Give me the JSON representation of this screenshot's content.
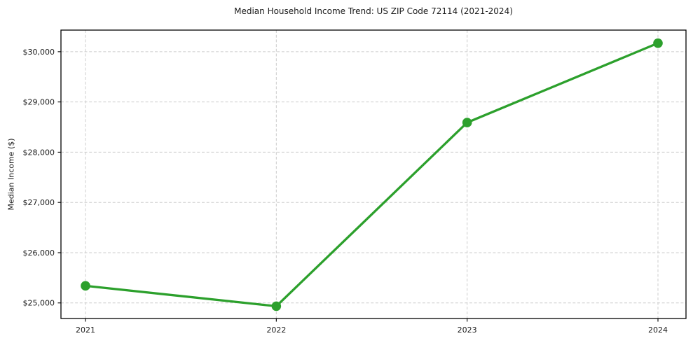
{
  "chart_data": {
    "type": "line",
    "title": "Median Household Income Trend: US ZIP Code 72114 (2021-2024)",
    "xlabel": "",
    "ylabel": "Median Income ($)",
    "categories": [
      "2021",
      "2022",
      "2023",
      "2024"
    ],
    "series": [
      {
        "name": "Median Household Income",
        "values": [
          25340,
          24935,
          28590,
          30170
        ]
      }
    ],
    "yticks": {
      "values": [
        25000,
        26000,
        27000,
        28000,
        29000,
        30000
      ],
      "labels": [
        "$25,000",
        "$26,000",
        "$27,000",
        "$28,000",
        "$29,000",
        "$30,000"
      ]
    },
    "ylim": [
      24690,
      30430
    ],
    "grid": true,
    "grid_style": "dashed",
    "legend_position": "none",
    "colors": {
      "line": "#2ca02c",
      "marker": "#2ca02c",
      "grid": "#cccccc",
      "spine": "#000000",
      "text": "#1a1a1a",
      "background": "#ffffff"
    }
  }
}
